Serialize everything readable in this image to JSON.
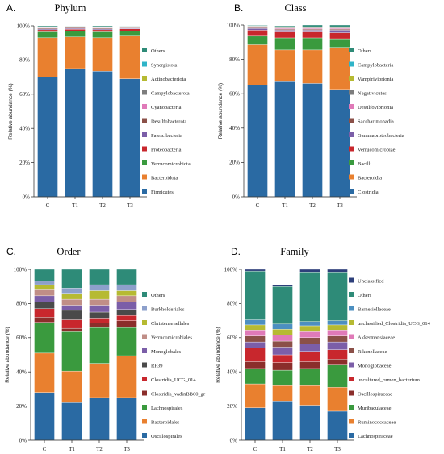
{
  "chart_data": [
    {
      "type": "bar",
      "stacked": true,
      "letter": "A.",
      "title": "Phylum",
      "ylabel": "Relative abundance (%)",
      "ylim": [
        0,
        100
      ],
      "yticks": [
        "0%",
        "20%",
        "40%",
        "60%",
        "80%",
        "100%"
      ],
      "categories": [
        "C",
        "T1",
        "T2",
        "T3"
      ],
      "series": [
        {
          "name": "Firmicutes",
          "color": "#2a6aa3",
          "values": [
            70,
            75,
            73.5,
            69
          ]
        },
        {
          "name": "Bacteroidota",
          "color": "#e9802f",
          "values": [
            23,
            18.5,
            19.5,
            25
          ]
        },
        {
          "name": "Verrucomicrobiota",
          "color": "#3a9a3e",
          "values": [
            3.5,
            3.5,
            3.5,
            3
          ]
        },
        {
          "name": "Proteobacteria",
          "color": "#c8272d",
          "values": [
            1.2,
            1.0,
            1.2,
            1.2
          ]
        },
        {
          "name": "Patescibacteria",
          "color": "#7b5ea8",
          "values": [
            0.5,
            0.5,
            0.5,
            0.4
          ]
        },
        {
          "name": "Desulfobacterota",
          "color": "#8b5048",
          "values": [
            0.5,
            0.5,
            0.5,
            0.4
          ]
        },
        {
          "name": "Cyanobacteria",
          "color": "#e07ab8",
          "values": [
            0.3,
            0.3,
            0.3,
            0.3
          ]
        },
        {
          "name": "Campylobacterota",
          "color": "#7d7d7d",
          "values": [
            0.2,
            0.2,
            0.2,
            0.2
          ]
        },
        {
          "name": "Actinobacteriota",
          "color": "#b6ba32",
          "values": [
            0.2,
            0.2,
            0.2,
            0.2
          ]
        },
        {
          "name": "Synergistota",
          "color": "#2fb4c8",
          "values": [
            0.1,
            0.1,
            0.1,
            0.1
          ]
        },
        {
          "name": "Others",
          "color": "#2e8b78",
          "values": [
            0.5,
            0.2,
            0.5,
            0.2
          ]
        }
      ]
    },
    {
      "type": "bar",
      "stacked": true,
      "letter": "B.",
      "title": "Class",
      "ylabel": "Relative abundance (%)",
      "ylim": [
        0,
        100
      ],
      "yticks": [
        "0%",
        "20%",
        "40%",
        "60%",
        "80%",
        "100%"
      ],
      "categories": [
        "C",
        "T1",
        "T2",
        "T3"
      ],
      "series": [
        {
          "name": "Clostridia",
          "color": "#2a6aa3",
          "values": [
            65,
            67,
            66,
            62.5
          ]
        },
        {
          "name": "Bacteroidia",
          "color": "#e9802f",
          "values": [
            23.5,
            18.5,
            19.5,
            24.5
          ]
        },
        {
          "name": "Bacilli",
          "color": "#3a9a3e",
          "values": [
            5,
            7,
            7,
            5
          ]
        },
        {
          "name": "Verrucomicrobiae",
          "color": "#c8272d",
          "values": [
            3.5,
            3.5,
            3.5,
            3.5
          ]
        },
        {
          "name": "Gammaproteobacteria",
          "color": "#7b5ea8",
          "values": [
            1,
            1,
            1,
            1.5
          ]
        },
        {
          "name": "Saccharimonadia",
          "color": "#8b5048",
          "values": [
            0.5,
            0.6,
            0.6,
            0.6
          ]
        },
        {
          "name": "Desulfovibrionia",
          "color": "#e07ab8",
          "values": [
            0.5,
            0.5,
            0.5,
            0.5
          ]
        },
        {
          "name": "Negativicutes",
          "color": "#7d7d7d",
          "values": [
            0.3,
            0.4,
            0.4,
            0.4
          ]
        },
        {
          "name": "Vampirivibrionia",
          "color": "#b6ba32",
          "values": [
            0.2,
            0.3,
            0.3,
            0.3
          ]
        },
        {
          "name": "Campylobacteria",
          "color": "#2fb4c8",
          "values": [
            0.2,
            0.2,
            0.2,
            0.2
          ]
        },
        {
          "name": "Others",
          "color": "#2e8b78",
          "values": [
            0.3,
            0.5,
            1.0,
            1.0
          ]
        }
      ]
    },
    {
      "type": "bar",
      "stacked": true,
      "letter": "C.",
      "title": "Order",
      "ylabel": "Relative abundance (%)",
      "ylim": [
        0,
        100
      ],
      "yticks": [
        "0%",
        "20%",
        "40%",
        "60%",
        "80%",
        "100%"
      ],
      "categories": [
        "C",
        "T1",
        "T2",
        "T3"
      ],
      "series": [
        {
          "name": "Oscillospirales",
          "color": "#2a6aa3",
          "values": [
            28,
            22,
            25,
            25
          ]
        },
        {
          "name": "Bacteroidales",
          "color": "#e9802f",
          "values": [
            23,
            18.5,
            20,
            24.5
          ]
        },
        {
          "name": "Lachnospirales",
          "color": "#3a9a3e",
          "values": [
            18,
            23,
            21,
            16.5
          ]
        },
        {
          "name": "Clostridia_vadinBB60_gr",
          "color": "#8b2e2b",
          "values": [
            3,
            2,
            2.5,
            4
          ]
        },
        {
          "name": "Clostridia_UCG_014",
          "color": "#c8272d",
          "values": [
            5,
            5,
            3,
            3
          ]
        },
        {
          "name": "RF39",
          "color": "#4a4a4a",
          "values": [
            4,
            5.5,
            3.5,
            3.5
          ]
        },
        {
          "name": "Monoglobales",
          "color": "#7b5ea8",
          "values": [
            3.5,
            3,
            4,
            4.5
          ]
        },
        {
          "name": "Verrucomicrobiales",
          "color": "#c08e87",
          "values": [
            3.5,
            3.5,
            3.5,
            3.5
          ]
        },
        {
          "name": "Christensenellales",
          "color": "#b6ba32",
          "values": [
            3,
            3.5,
            5,
            3
          ]
        },
        {
          "name": "Burkholderiales",
          "color": "#8da0cb",
          "values": [
            2,
            3,
            3.5,
            3.5
          ]
        },
        {
          "name": "Others",
          "color": "#2e8b78",
          "values": [
            7,
            11,
            9,
            9
          ]
        }
      ]
    },
    {
      "type": "bar",
      "stacked": true,
      "letter": "D.",
      "title": "Family",
      "ylabel": "Relative abundance (%)",
      "ylim": [
        0,
        100
      ],
      "yticks": [
        "0%",
        "20%",
        "40%",
        "60%",
        "80%",
        "100%"
      ],
      "categories": [
        "C",
        "T1",
        "T2",
        "T3"
      ],
      "series": [
        {
          "name": "Lachnospiraceae",
          "color": "#2a6aa3",
          "values": [
            19,
            23,
            20.5,
            17
          ]
        },
        {
          "name": "Ruminococcaceae",
          "color": "#e9802f",
          "values": [
            14,
            9,
            11.5,
            14
          ]
        },
        {
          "name": "Muribaculaceae",
          "color": "#3a9a3e",
          "values": [
            9,
            9,
            10,
            13
          ]
        },
        {
          "name": "Oscillospiraceae",
          "color": "#8b2e2b",
          "values": [
            4,
            4.5,
            4,
            3.5
          ]
        },
        {
          "name": "uncultured_rumen_bacterium",
          "color": "#c8272d",
          "values": [
            8,
            4.5,
            6,
            5.5
          ]
        },
        {
          "name": "Monoglobaceae",
          "color": "#7b5ea8",
          "values": [
            3.5,
            4.5,
            4.5,
            4.5
          ]
        },
        {
          "name": "Rikenellaceae",
          "color": "#8b5048",
          "values": [
            3.5,
            3.5,
            3.5,
            3.5
          ]
        },
        {
          "name": "Akkermansiaceae",
          "color": "#e07ab8",
          "values": [
            3.5,
            3.5,
            3.5,
            3.5
          ]
        },
        {
          "name": "unclassified_Clostridia_UCG_014",
          "color": "#b6ba32",
          "values": [
            3,
            3.5,
            3.5,
            3
          ]
        },
        {
          "name": "Barnesiellaceae",
          "color": "#4c8fc0",
          "values": [
            3,
            3,
            2.5,
            2.5
          ]
        },
        {
          "name": "Others",
          "color": "#2e8b78",
          "values": [
            28.5,
            22,
            29,
            28.5
          ]
        },
        {
          "name": "Unclassified",
          "color": "#2d3f7a",
          "values": [
            1,
            1,
            1.5,
            1.5
          ]
        }
      ]
    }
  ]
}
